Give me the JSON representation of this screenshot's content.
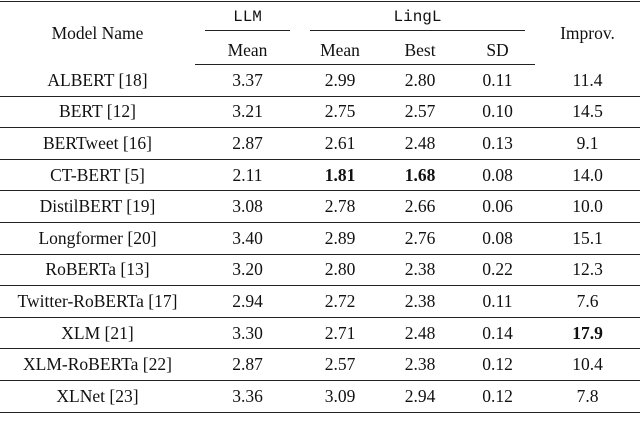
{
  "table": {
    "header": {
      "model": "Model Name",
      "llm": "LLM",
      "lingl": "LingL",
      "improv": "Improv.",
      "sub": [
        "Mean",
        "Mean",
        "Best",
        "SD"
      ]
    },
    "rows": [
      [
        "ALBERT [18]",
        "3.37",
        "2.99",
        "2.80",
        "0.11",
        "11.4"
      ],
      [
        "BERT [12]",
        "3.21",
        "2.75",
        "2.57",
        "0.10",
        "14.5"
      ],
      [
        "BERTweet [16]",
        "2.87",
        "2.61",
        "2.48",
        "0.13",
        "9.1"
      ],
      [
        "CT-BERT [5]",
        "2.11",
        "1.81",
        "1.68",
        "0.08",
        "14.0"
      ],
      [
        "DistilBERT [19]",
        "3.08",
        "2.78",
        "2.66",
        "0.06",
        "10.0"
      ],
      [
        "Longformer [20]",
        "3.40",
        "2.89",
        "2.76",
        "0.08",
        "15.1"
      ],
      [
        "RoBERTa [13]",
        "3.20",
        "2.80",
        "2.38",
        "0.22",
        "12.3"
      ],
      [
        "Twitter-RoBERTa [17]",
        "2.94",
        "2.72",
        "2.38",
        "0.11",
        "7.6"
      ],
      [
        "XLM [21]",
        "3.30",
        "2.71",
        "2.48",
        "0.14",
        "17.9"
      ],
      [
        "XLM-RoBERTa [22]",
        "2.87",
        "2.57",
        "2.38",
        "0.12",
        "10.4"
      ],
      [
        "XLNet [23]",
        "3.36",
        "3.09",
        "2.94",
        "0.12",
        "7.8"
      ]
    ]
  }
}
